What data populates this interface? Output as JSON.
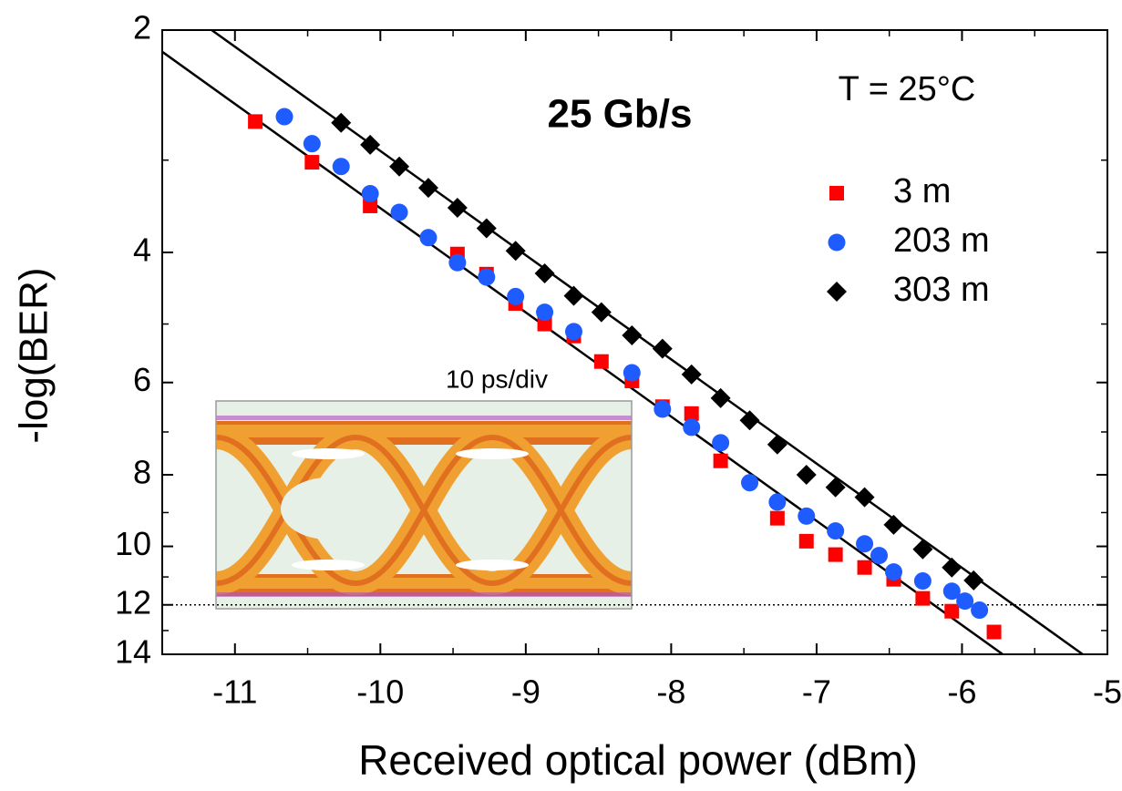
{
  "chart_data": {
    "type": "scatter",
    "xlabel": "Received optical power (dBm)",
    "ylabel": "-log(BER)",
    "annotations": [
      {
        "text": "25 Gb/s",
        "color": "#ff0000"
      },
      {
        "text": "T = 25°C",
        "color": "#000000"
      },
      {
        "text": "10 ps/div",
        "color": "#000000"
      }
    ],
    "xlim": [
      -11.5,
      -5
    ],
    "xticks": [
      -11,
      -10,
      -9,
      -8,
      -7,
      -6,
      -5
    ],
    "xminor_ticks": [
      -11.5,
      -10.5,
      -9.5,
      -8.5,
      -7.5,
      -6.5,
      -5.5
    ],
    "ylim": [
      14,
      2
    ],
    "ylog": true,
    "yticks": [
      2,
      4,
      6,
      8,
      10,
      12,
      14
    ],
    "yminor_ticks": [
      3,
      5,
      7,
      9,
      11,
      13
    ],
    "reference_y": 12,
    "legend": "upper right",
    "series": [
      {
        "name": "3 m",
        "color": "#ff0000",
        "marker": "square",
        "x": [
          -10.86,
          -10.47,
          -10.07,
          -9.47,
          -9.27,
          -9.07,
          -8.87,
          -8.67,
          -8.48,
          -8.27,
          -8.06,
          -7.86,
          -7.66,
          -7.27,
          -7.07,
          -6.87,
          -6.67,
          -6.47,
          -6.27,
          -6.07,
          -5.78
        ],
        "values": [
          2.66,
          3.02,
          3.46,
          4.02,
          4.28,
          4.69,
          5.0,
          5.19,
          5.62,
          5.97,
          6.47,
          6.61,
          7.66,
          9.16,
          9.84,
          10.26,
          10.68,
          11.08,
          11.76,
          12.24,
          13.06
        ]
      },
      {
        "name": "203 m",
        "color": "#1f5cff",
        "marker": "circle",
        "x": [
          -10.66,
          -10.47,
          -10.27,
          -10.07,
          -9.87,
          -9.67,
          -9.47,
          -9.27,
          -9.07,
          -8.87,
          -8.67,
          -8.27,
          -8.06,
          -7.86,
          -7.66,
          -7.46,
          -7.27,
          -7.07,
          -6.87,
          -6.67,
          -6.57,
          -6.47,
          -6.27,
          -6.07,
          -5.98,
          -5.88
        ],
        "values": [
          2.62,
          2.85,
          3.06,
          3.33,
          3.53,
          3.82,
          4.13,
          4.32,
          4.59,
          4.82,
          5.12,
          5.82,
          6.52,
          6.9,
          7.24,
          8.2,
          8.71,
          9.1,
          9.53,
          9.92,
          10.29,
          10.83,
          11.14,
          11.5,
          11.86,
          12.2
        ]
      },
      {
        "name": "303 m",
        "color": "#000000",
        "marker": "diamond",
        "x": [
          -10.27,
          -10.07,
          -9.87,
          -9.67,
          -9.47,
          -9.27,
          -9.07,
          -8.87,
          -8.67,
          -8.48,
          -8.27,
          -8.06,
          -7.86,
          -7.66,
          -7.46,
          -7.27,
          -7.07,
          -6.87,
          -6.67,
          -6.47,
          -6.27,
          -6.07,
          -5.92
        ],
        "values": [
          2.67,
          2.86,
          3.06,
          3.27,
          3.48,
          3.71,
          3.98,
          4.27,
          4.58,
          4.82,
          5.18,
          5.4,
          5.85,
          6.3,
          6.75,
          7.28,
          8.0,
          8.32,
          8.58,
          9.35,
          10.09,
          10.68,
          11.12
        ]
      }
    ],
    "fit_lines": [
      {
        "x": [
          -11.5,
          -5.72
        ],
        "values": [
          2.14,
          14
        ]
      },
      {
        "x": [
          -11.16,
          -5.17
        ],
        "values": [
          2,
          14
        ]
      }
    ]
  }
}
